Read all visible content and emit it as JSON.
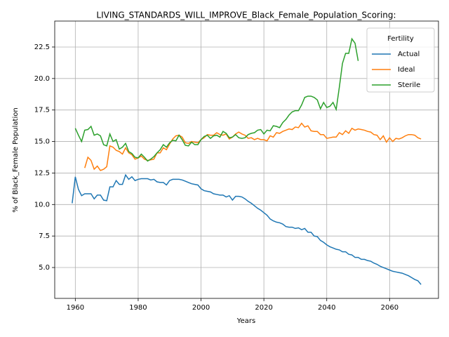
{
  "chart_data": {
    "type": "line",
    "title": "LIVING_STANDARDS_WILL_IMPROVE_Black_Female_Population_Scoring:",
    "xlabel": "Years",
    "ylabel": "% of Black_Female Population",
    "legend_title": "Fertility",
    "legend": "upper right",
    "grid": true,
    "xlim": [
      1953.45,
      2075.55
    ],
    "ylim": [
      2.55,
      24.56
    ],
    "xticks": [
      1960,
      1980,
      2000,
      2020,
      2040,
      2060
    ],
    "yticks": [
      {
        "value": 5,
        "label": "5.0"
      },
      7.5,
      {
        "value": 10,
        "label": "10.0"
      },
      12.5,
      {
        "value": 15,
        "label": "15.0"
      },
      17.5,
      {
        "value": 20,
        "label": "20.0"
      },
      22.5
    ],
    "series": [
      {
        "name": "Actual",
        "color": "#1f77b4",
        "x": [
          1959,
          1960,
          1961,
          1962,
          1963,
          1964,
          1965,
          1966,
          1967,
          1968,
          1969,
          1970,
          1971,
          1972,
          1973,
          1974,
          1975,
          1976,
          1977,
          1978,
          1979,
          1980,
          1981,
          1982,
          1983,
          1984,
          1985,
          1986,
          1987,
          1988,
          1989,
          1990,
          1991,
          1992,
          1993,
          1994,
          1995,
          1996,
          1997,
          1998,
          1999,
          2000,
          2001,
          2002,
          2003,
          2004,
          2005,
          2006,
          2007,
          2008,
          2009,
          2010,
          2011,
          2012,
          2013,
          2014,
          2015,
          2016,
          2017,
          2018,
          2019,
          2020,
          2021,
          2022,
          2023,
          2024,
          2025,
          2026,
          2027,
          2028,
          2029,
          2030,
          2031,
          2032,
          2033,
          2034,
          2035,
          2036,
          2037,
          2038,
          2039,
          2040,
          2041,
          2042,
          2043,
          2044,
          2045,
          2046,
          2047,
          2048,
          2049,
          2050,
          2051,
          2052,
          2053,
          2054,
          2055,
          2056,
          2057,
          2058,
          2059,
          2060,
          2061,
          2062,
          2063,
          2064,
          2065,
          2066,
          2067,
          2068,
          2069,
          2070
        ],
        "values": [
          10.1,
          12.2,
          11.2,
          10.7,
          10.85,
          10.85,
          10.85,
          10.45,
          10.75,
          10.75,
          10.35,
          10.3,
          11.4,
          11.4,
          11.9,
          11.6,
          11.6,
          12.35,
          12.0,
          12.2,
          11.9,
          12.0,
          12.05,
          12.05,
          12.05,
          11.95,
          12.0,
          11.8,
          11.75,
          11.75,
          11.55,
          11.9,
          12.0,
          12.0,
          12.0,
          11.95,
          11.85,
          11.75,
          11.65,
          11.6,
          11.55,
          11.25,
          11.1,
          11.05,
          11.0,
          10.85,
          10.8,
          10.75,
          10.75,
          10.6,
          10.7,
          10.35,
          10.65,
          10.65,
          10.6,
          10.45,
          10.25,
          10.1,
          9.9,
          9.7,
          9.55,
          9.35,
          9.15,
          8.85,
          8.7,
          8.6,
          8.55,
          8.45,
          8.25,
          8.2,
          8.2,
          8.1,
          8.15,
          8.0,
          8.1,
          7.8,
          7.8,
          7.5,
          7.45,
          7.15,
          7.0,
          6.8,
          6.65,
          6.55,
          6.45,
          6.4,
          6.25,
          6.25,
          6.05,
          6.0,
          5.8,
          5.8,
          5.65,
          5.65,
          5.55,
          5.5,
          5.35,
          5.25,
          5.1,
          5.0,
          4.9,
          4.8,
          4.7,
          4.65,
          4.6,
          4.55,
          4.45,
          4.35,
          4.2,
          4.05,
          3.95,
          3.65
        ]
      },
      {
        "name": "Ideal",
        "color": "#ff7f0e",
        "x": [
          1963,
          1964,
          1965,
          1966,
          1967,
          1968,
          1969,
          1970,
          1971,
          1972,
          1973,
          1974,
          1975,
          1976,
          1977,
          1978,
          1979,
          1980,
          1981,
          1982,
          1983,
          1984,
          1985,
          1986,
          1987,
          1988,
          1989,
          1990,
          1991,
          1992,
          1993,
          1994,
          1995,
          1996,
          1997,
          1998,
          1999,
          2000,
          2001,
          2002,
          2003,
          2004,
          2005,
          2006,
          2007,
          2008,
          2009,
          2010,
          2011,
          2012,
          2013,
          2014,
          2015,
          2016,
          2017,
          2018,
          2019,
          2020,
          2021,
          2022,
          2023,
          2024,
          2025,
          2026,
          2027,
          2028,
          2029,
          2030,
          2031,
          2032,
          2033,
          2034,
          2035,
          2036,
          2037,
          2038,
          2039,
          2040,
          2041,
          2042,
          2043,
          2044,
          2045,
          2046,
          2047,
          2048,
          2049,
          2050,
          2051,
          2052,
          2053,
          2054,
          2055,
          2056,
          2057,
          2058,
          2059,
          2060,
          2061,
          2062,
          2063,
          2064,
          2065,
          2066,
          2067,
          2068,
          2069,
          2070
        ],
        "values": [
          12.9,
          13.75,
          13.5,
          12.8,
          13.05,
          12.7,
          12.8,
          13.0,
          14.65,
          14.55,
          14.3,
          14.2,
          14.0,
          14.5,
          14.1,
          13.95,
          13.6,
          13.7,
          13.85,
          13.6,
          13.5,
          13.55,
          13.6,
          14.1,
          14.1,
          14.5,
          14.35,
          14.8,
          15.2,
          15.45,
          15.5,
          15.35,
          14.9,
          14.85,
          15.0,
          14.95,
          14.9,
          15.15,
          15.3,
          15.55,
          15.5,
          15.5,
          15.7,
          15.55,
          15.5,
          15.6,
          15.2,
          15.35,
          15.6,
          15.75,
          15.6,
          15.5,
          15.25,
          15.3,
          15.15,
          15.25,
          15.15,
          15.15,
          15.05,
          15.45,
          15.35,
          15.7,
          15.65,
          15.8,
          15.9,
          16.0,
          15.95,
          16.15,
          16.1,
          16.45,
          16.15,
          16.25,
          15.85,
          15.8,
          15.8,
          15.55,
          15.55,
          15.25,
          15.3,
          15.35,
          15.35,
          15.7,
          15.55,
          15.85,
          15.65,
          16.05,
          15.9,
          16.0,
          15.95,
          15.9,
          15.8,
          15.75,
          15.55,
          15.5,
          15.15,
          15.45,
          14.95,
          15.3,
          15.0,
          15.25,
          15.2,
          15.3,
          15.45,
          15.55,
          15.55,
          15.5,
          15.3,
          15.2
        ]
      },
      {
        "name": "Sterile",
        "color": "#2ca02c",
        "x": [
          1960,
          1961,
          1962,
          1963,
          1964,
          1965,
          1966,
          1967,
          1968,
          1969,
          1970,
          1971,
          1972,
          1973,
          1974,
          1975,
          1976,
          1977,
          1978,
          1979,
          1980,
          1981,
          1982,
          1983,
          1984,
          1985,
          1986,
          1987,
          1988,
          1989,
          1990,
          1991,
          1992,
          1993,
          1994,
          1995,
          1996,
          1997,
          1998,
          1999,
          2000,
          2001,
          2002,
          2003,
          2004,
          2005,
          2006,
          2007,
          2008,
          2009,
          2010,
          2011,
          2012,
          2013,
          2014,
          2015,
          2016,
          2017,
          2018,
          2019,
          2020,
          2021,
          2022,
          2023,
          2024,
          2025,
          2026,
          2027,
          2028,
          2029,
          2030,
          2031,
          2032,
          2033,
          2034,
          2035,
          2036,
          2037,
          2038,
          2039,
          2040,
          2041,
          2042,
          2043,
          2044,
          2045,
          2046,
          2047,
          2048,
          2049,
          2050
        ],
        "values": [
          16.05,
          15.5,
          15.0,
          15.9,
          15.95,
          16.2,
          15.5,
          15.6,
          15.45,
          14.75,
          14.65,
          15.6,
          15.0,
          15.15,
          14.4,
          14.55,
          14.85,
          14.2,
          14.05,
          13.75,
          13.7,
          14.0,
          13.75,
          13.45,
          13.6,
          13.8,
          14.1,
          14.35,
          14.75,
          14.55,
          14.9,
          15.1,
          15.05,
          15.5,
          15.15,
          14.7,
          14.65,
          14.95,
          14.75,
          14.75,
          15.15,
          15.4,
          15.5,
          15.25,
          15.45,
          15.5,
          15.35,
          15.8,
          15.65,
          15.3,
          15.35,
          15.55,
          15.3,
          15.25,
          15.3,
          15.55,
          15.65,
          15.7,
          15.9,
          15.95,
          15.6,
          15.9,
          15.85,
          16.25,
          16.2,
          16.1,
          16.5,
          16.75,
          17.1,
          17.35,
          17.45,
          17.45,
          17.9,
          18.5,
          18.6,
          18.6,
          18.5,
          18.3,
          17.6,
          18.1,
          17.7,
          17.8,
          18.1,
          17.55,
          19.3,
          21.2,
          22.0,
          22.0,
          23.15,
          22.8,
          21.4
        ]
      }
    ]
  }
}
